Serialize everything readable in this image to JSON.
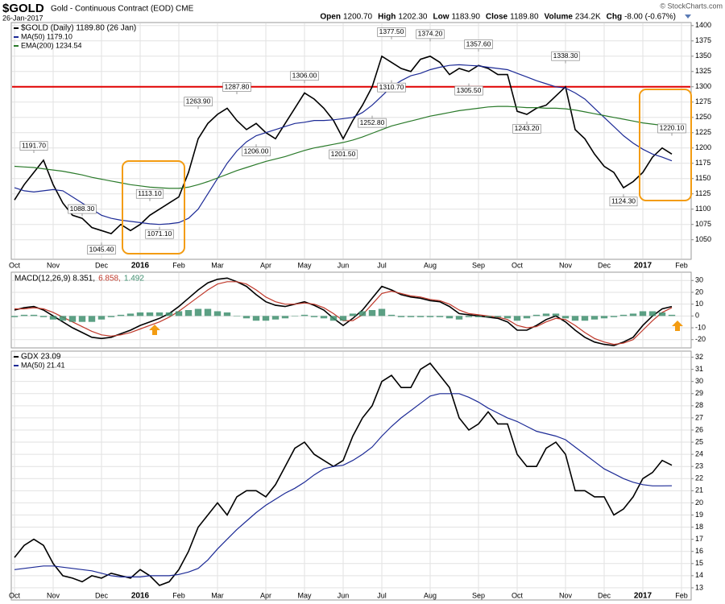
{
  "header": {
    "symbol": "$GOLD",
    "name": "Gold - Continuous Contract (EOD) CME",
    "date": "26-Jan-2017",
    "copyright": "© StockCharts.com",
    "quote": [
      {
        "label": "Open",
        "value": "1200.70"
      },
      {
        "label": "High",
        "value": "1202.30"
      },
      {
        "label": "Low",
        "value": "1183.90"
      },
      {
        "label": "Close",
        "value": "1189.80"
      },
      {
        "label": "Volume",
        "value": "234.2K"
      },
      {
        "label": "Chg",
        "value": "-8.00 (-0.67%)"
      }
    ]
  },
  "chart_data": [
    {
      "type": "line",
      "legend": "stacked",
      "categories": [
        "Oct",
        null,
        null,
        null,
        "Nov",
        null,
        null,
        null,
        null,
        "Dec",
        null,
        null,
        null,
        "2016",
        null,
        null,
        null,
        "Feb",
        null,
        null,
        null,
        "Mar",
        null,
        null,
        null,
        null,
        "Apr",
        null,
        null,
        null,
        "May",
        null,
        null,
        null,
        "Jun",
        null,
        null,
        null,
        "Jul",
        null,
        null,
        null,
        null,
        "Aug",
        null,
        null,
        null,
        null,
        "Sep",
        null,
        null,
        null,
        "Oct",
        null,
        null,
        null,
        null,
        "Nov",
        null,
        null,
        null,
        "Dec",
        null,
        null,
        null,
        "2017",
        null,
        null,
        null,
        "Feb"
      ],
      "ylim": [
        1018,
        1405
      ],
      "yticks": [
        1050,
        1075,
        1100,
        1125,
        1150,
        1175,
        1200,
        1225,
        1250,
        1275,
        1300,
        1325,
        1350,
        1375,
        1400
      ],
      "grid": true,
      "hline": {
        "value": 1300,
        "color": "#e00000"
      },
      "series": [
        {
          "name": "$GOLD (Daily) 1189.80 (26 Jan)",
          "color": "#000000",
          "values": [
            1115,
            1140,
            1160,
            1180,
            1140,
            1110,
            1090,
            1085,
            1070,
            1065,
            1060,
            1075,
            1065,
            1075,
            1090,
            1100,
            1110,
            1120,
            1160,
            1215,
            1240,
            1255,
            1265,
            1245,
            1230,
            1240,
            1225,
            1215,
            1240,
            1265,
            1290,
            1280,
            1265,
            1245,
            1215,
            1245,
            1270,
            1300,
            1350,
            1340,
            1330,
            1325,
            1345,
            1350,
            1340,
            1320,
            1330,
            1325,
            1335,
            1330,
            1320,
            1320,
            1260,
            1255,
            1265,
            1270,
            1285,
            1300,
            1230,
            1215,
            1190,
            1170,
            1160,
            1135,
            1145,
            1160,
            1185,
            1200,
            1190,
            null
          ]
        },
        {
          "name": "MA(50) 1179.10",
          "color": "#1c2a96",
          "values": [
            1135,
            1130,
            1128,
            1130,
            1132,
            1130,
            1120,
            1110,
            1100,
            1090,
            1085,
            1082,
            1080,
            1078,
            1076,
            1075,
            1076,
            1078,
            1085,
            1100,
            1125,
            1150,
            1175,
            1195,
            1210,
            1220,
            1225,
            1230,
            1235,
            1240,
            1242,
            1245,
            1245,
            1246,
            1248,
            1250,
            1258,
            1270,
            1285,
            1300,
            1310,
            1318,
            1322,
            1328,
            1332,
            1335,
            1336,
            1335,
            1334,
            1332,
            1330,
            1328,
            1322,
            1316,
            1310,
            1305,
            1300,
            1298,
            1290,
            1280,
            1265,
            1250,
            1235,
            1220,
            1208,
            1198,
            1190,
            1185,
            1179,
            null
          ]
        },
        {
          "name": "EMA(200) 1234.54",
          "color": "#2a7a2a",
          "values": [
            1170,
            1169,
            1168,
            1166,
            1164,
            1162,
            1159,
            1156,
            1152,
            1149,
            1146,
            1143,
            1140,
            1138,
            1136,
            1135,
            1134,
            1134,
            1136,
            1140,
            1145,
            1151,
            1157,
            1163,
            1168,
            1173,
            1178,
            1182,
            1186,
            1191,
            1196,
            1200,
            1203,
            1206,
            1209,
            1213,
            1218,
            1224,
            1230,
            1236,
            1240,
            1244,
            1248,
            1252,
            1255,
            1258,
            1261,
            1263,
            1265,
            1267,
            1268,
            1268,
            1267,
            1266,
            1266,
            1265,
            1265,
            1264,
            1262,
            1259,
            1256,
            1253,
            1250,
            1247,
            1244,
            1241,
            1239,
            1237,
            1235,
            null
          ]
        }
      ],
      "annotations": [
        {
          "index": 2,
          "value": 1191.7,
          "label": "1191.70"
        },
        {
          "index": 7,
          "value": 1088.3,
          "label": "1088.30"
        },
        {
          "index": 9,
          "value": 1045.4,
          "label": "1045.40"
        },
        {
          "index": 14,
          "value": 1113.1,
          "label": "1113.10"
        },
        {
          "index": 15,
          "value": 1071.1,
          "label": "1071.10"
        },
        {
          "index": 19,
          "value": 1263.9,
          "label": "1263.90"
        },
        {
          "index": 23,
          "value": 1287.8,
          "label": "1287.80"
        },
        {
          "index": 25,
          "value": 1206,
          "label": "1206.00"
        },
        {
          "index": 30,
          "value": 1306,
          "label": "1306.00"
        },
        {
          "index": 34,
          "value": 1201.5,
          "label": "1201.50"
        },
        {
          "index": 37,
          "value": 1252.8,
          "label": "1252.80"
        },
        {
          "index": 39,
          "value": 1377.5,
          "label": "1377.50"
        },
        {
          "index": 39,
          "value": 1310.7,
          "label": "1310.70"
        },
        {
          "index": 43,
          "value": 1374.2,
          "label": "1374.20"
        },
        {
          "index": 47,
          "value": 1305.5,
          "label": "1305.50"
        },
        {
          "index": 48,
          "value": 1357.6,
          "label": "1357.60"
        },
        {
          "index": 53,
          "value": 1243.2,
          "label": "1243.20"
        },
        {
          "index": 57,
          "value": 1338.3,
          "label": "1338.30"
        },
        {
          "index": 63,
          "value": 1124.3,
          "label": "1124.30"
        },
        {
          "index": 68,
          "value": 1220.1,
          "label": "1220.10"
        }
      ]
    },
    {
      "type": "line",
      "legend": "inline",
      "ylim": [
        -27,
        37
      ],
      "yticks": [
        -20,
        -10,
        0,
        10,
        20,
        30
      ],
      "grid": true,
      "series": [
        {
          "name": "MACD(12,26,9) 8.351,",
          "color": "#000000",
          "values": [
            5,
            7,
            8,
            5,
            0,
            -5,
            -10,
            -14,
            -18,
            -19,
            -18,
            -15,
            -12,
            -8,
            -5,
            -2,
            2,
            8,
            15,
            22,
            28,
            31,
            32,
            29,
            25,
            18,
            12,
            9,
            8,
            10,
            12,
            9,
            5,
            -2,
            -8,
            -2,
            5,
            15,
            25,
            22,
            18,
            16,
            15,
            13,
            12,
            8,
            2,
            1,
            0,
            -1,
            -2,
            -5,
            -12,
            -12,
            -8,
            -3,
            0,
            -5,
            -12,
            -18,
            -22,
            -24,
            -25,
            -22,
            -18,
            -8,
            0,
            6,
            8,
            null
          ]
        },
        {
          "name": "6.858,",
          "color": "#c0392b",
          "values": [
            6,
            6,
            7,
            6,
            3,
            -1,
            -5,
            -9,
            -13,
            -16,
            -17,
            -16,
            -14,
            -11,
            -8,
            -5,
            -1,
            4,
            10,
            16,
            22,
            27,
            29,
            29,
            27,
            22,
            16,
            12,
            10,
            10,
            11,
            10,
            7,
            2,
            -4,
            -4,
            1,
            10,
            19,
            21,
            19,
            17,
            16,
            14,
            13,
            10,
            5,
            2,
            1,
            0,
            -1,
            -3,
            -8,
            -10,
            -9,
            -5,
            -2,
            -3,
            -8,
            -14,
            -19,
            -22,
            -24,
            -23,
            -20,
            -12,
            -4,
            3,
            7,
            null
          ]
        },
        {
          "name": "1.492",
          "type": "bar",
          "color": "#3f8f6f",
          "values": [
            -1,
            1,
            1,
            -1,
            -3,
            -4,
            -5,
            -5,
            -5,
            -3,
            -1,
            1,
            2,
            3,
            3,
            3,
            3,
            4,
            5,
            6,
            6,
            4,
            3,
            0,
            -2,
            -4,
            -4,
            -3,
            -2,
            0,
            1,
            -1,
            -2,
            -4,
            -4,
            2,
            4,
            5,
            6,
            1,
            -1,
            -1,
            -1,
            -1,
            -1,
            -2,
            -3,
            -1,
            -1,
            -1,
            -1,
            -2,
            -4,
            -2,
            1,
            2,
            2,
            -2,
            -4,
            -4,
            -3,
            -2,
            -1,
            1,
            2,
            4,
            4,
            3,
            1,
            null
          ]
        }
      ]
    },
    {
      "type": "line",
      "legend": "stacked",
      "categories": [
        "Oct",
        null,
        null,
        null,
        "Nov",
        null,
        null,
        null,
        null,
        "Dec",
        null,
        null,
        null,
        "2016",
        null,
        null,
        null,
        "Feb",
        null,
        null,
        null,
        "Mar",
        null,
        null,
        null,
        null,
        "Apr",
        null,
        null,
        null,
        "May",
        null,
        null,
        null,
        "Jun",
        null,
        null,
        null,
        "Jul",
        null,
        null,
        null,
        null,
        "Aug",
        null,
        null,
        null,
        null,
        "Sep",
        null,
        null,
        null,
        "Oct",
        null,
        null,
        null,
        null,
        "Nov",
        null,
        null,
        null,
        "Dec",
        null,
        null,
        null,
        "2017",
        null,
        null,
        null,
        "Feb"
      ],
      "ylim": [
        12,
        32.5
      ],
      "yticks": [
        13,
        14,
        15,
        16,
        17,
        18,
        19,
        20,
        21,
        22,
        23,
        24,
        25,
        26,
        27,
        28,
        29,
        30,
        31,
        32
      ],
      "grid": true,
      "series": [
        {
          "name": "GDX 23.09",
          "color": "#000000",
          "values": [
            15.5,
            16.5,
            17,
            16.5,
            15,
            14,
            13.8,
            13.5,
            14,
            13.8,
            14.2,
            14,
            13.8,
            14.5,
            14,
            13.2,
            13.5,
            14.5,
            16,
            18,
            19,
            20,
            19,
            20.5,
            21,
            21,
            20.5,
            21.5,
            23,
            24.5,
            25,
            24,
            23.5,
            23,
            23.5,
            25.5,
            27,
            28,
            30,
            30.5,
            29.5,
            29.5,
            31,
            31.5,
            30.5,
            29.5,
            27,
            26,
            26.5,
            27.5,
            26.5,
            26.5,
            24,
            23,
            23,
            24.5,
            25,
            24,
            21,
            21,
            20.5,
            20.5,
            19,
            19.5,
            20.5,
            22,
            22.5,
            23.5,
            23.1,
            null
          ]
        },
        {
          "name": "MA(50) 21.41",
          "color": "#1c2a96",
          "values": [
            14.5,
            14.6,
            14.7,
            14.8,
            14.8,
            14.7,
            14.6,
            14.5,
            14.4,
            14.2,
            14.0,
            13.9,
            13.9,
            13.9,
            14.0,
            14.0,
            14.0,
            14.1,
            14.3,
            14.6,
            15.3,
            16.2,
            17,
            17.8,
            18.5,
            19.2,
            19.8,
            20.3,
            20.8,
            21.2,
            21.7,
            22.3,
            22.8,
            23,
            23.1,
            23.5,
            24,
            24.6,
            25.5,
            26.3,
            27,
            27.6,
            28.2,
            28.8,
            29,
            29,
            29,
            28.7,
            28.3,
            27.8,
            27.4,
            27,
            26.7,
            26.3,
            25.9,
            25.7,
            25.5,
            25.2,
            24.6,
            24,
            23.4,
            22.8,
            22.4,
            22,
            21.7,
            21.5,
            21.4,
            21.4,
            21.41,
            null
          ]
        }
      ]
    }
  ]
}
